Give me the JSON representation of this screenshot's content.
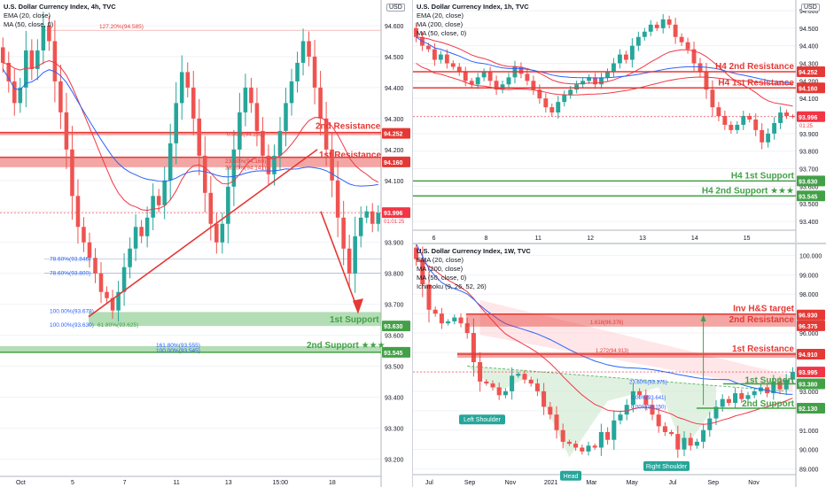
{
  "colors": {
    "up": "#26a69a",
    "down": "#ef5350",
    "ema": "#f23645",
    "ma200": "#f23645",
    "ma50": "#2962ff",
    "resistance": "#e53935",
    "support": "#43a047",
    "price": "#f23645"
  },
  "panel_4h": {
    "title": "U.S. Dollar Currency Index, 4h, TVC",
    "legend": [
      "EMA (20, close)",
      "MA (50, close, 0)"
    ],
    "currency": "USD",
    "price_tag": "93.996",
    "countdown": "01:01:25",
    "labels": {
      "resistance2": "2nd Resistance",
      "resistance1": "1st Resistance",
      "support1": "1st Support",
      "support2": "2nd Support ★★★",
      "fib_top": "127.20%(94.585)",
      "fib_r2": "0.00%(94.252)",
      "fib_r1a": "23.60%(94.160)",
      "fib_r1b": "38.20%(94.141)",
      "fib_786a": "78.60%(93.846)",
      "fib_786b": "78.60%(93.800)",
      "fib_100a": "100.00%(93.678)",
      "fib_100b": "100.00%(93.630)",
      "fib_618": "61.80%(93.625)",
      "fib_1618": "161.80%(93.555)",
      "fib_100c": "100.00%(93.545)"
    },
    "level_tags": {
      "r2": "94.252",
      "r1": "94.160",
      "s1": "93.630",
      "s2": "93.545"
    }
  },
  "panel_1h": {
    "title": "U.S. Dollar Currency Index, 1h, TVC",
    "legend": [
      "EMA (20, close)",
      "MA (200, close)",
      "MA (50, close, 0)"
    ],
    "currency": "USD",
    "price_tag": "93.996",
    "countdown": "01:25",
    "labels": {
      "r2": "H4 2nd Resistance",
      "r1": "H4 1st Resistance",
      "s1": "H4 1st Support",
      "s2": "H4 2nd Support ★★★"
    },
    "level_tags": {
      "r2": "94.252",
      "r1": "94.160",
      "s1": "93.630",
      "s2": "93.545"
    }
  },
  "panel_1w": {
    "title": "U.S. Dollar Currency Index, 1W, TVC",
    "legend": [
      "EMA (20, close)",
      "MA (200, close)",
      "MA (50, close, 0)",
      "Ichimoku (9, 26, 52, 26)"
    ],
    "price_tag": "93.995",
    "countdown": "21:01:24",
    "labels": {
      "target": "Inv H&S target",
      "r2": "2nd Resistance",
      "r1": "1st Resistance",
      "s1": "1st Support",
      "s2": "2nd Support",
      "left_shoulder": "Left Shoulder",
      "head": "Head",
      "right_shoulder": "Right Shoulder",
      "fib_1618": "1.618(96.376)",
      "fib_1272": "1.272(94.913)",
      "fib_236": "23.60%(93.375)",
      "fib_0a": "0.00%(93.641)",
      "fib_0b": "0.00%(93.150)"
    },
    "level_tags": {
      "target": "96.930",
      "r2": "96.375",
      "r1": "94.910",
      "s1": "93.380",
      "s2": "92.130"
    }
  },
  "chart_data": [
    {
      "type": "candlestick",
      "title": "U.S. Dollar Currency Index, 4h, TVC",
      "ylim": [
        93.15,
        94.66
      ],
      "yticks": [
        93.2,
        93.3,
        93.4,
        93.5,
        93.6,
        93.7,
        93.8,
        93.9,
        94.0,
        94.1,
        94.2,
        94.3,
        94.4,
        94.5,
        94.6
      ],
      "xticks": [
        "Oct",
        "5",
        "7",
        "11",
        "13",
        "15:00",
        "18"
      ],
      "levels": {
        "resistance2": 94.252,
        "resistance1": 94.16,
        "support1": 93.63,
        "support2": 93.545,
        "current": 93.996
      },
      "closes": [
        94.48,
        94.42,
        94.35,
        94.4,
        94.52,
        94.46,
        94.52,
        94.6,
        94.55,
        94.42,
        94.32,
        94.2,
        94.05,
        93.95,
        93.9,
        93.85,
        93.8,
        93.74,
        93.72,
        93.68,
        93.74,
        93.82,
        93.88,
        93.95,
        93.92,
        93.98,
        94.05,
        94.02,
        94.1,
        94.22,
        94.35,
        94.45,
        94.4,
        94.3,
        94.18,
        94.06,
        93.96,
        93.9,
        93.96,
        94.08,
        94.2,
        94.32,
        94.4,
        94.35,
        94.26,
        94.18,
        94.12,
        94.18,
        94.26,
        94.35,
        94.42,
        94.48,
        94.55,
        94.5,
        94.4,
        94.3,
        94.2,
        94.1,
        93.98,
        93.88,
        93.8,
        93.92,
        93.98,
        94.0,
        93.96,
        93.995
      ]
    },
    {
      "type": "candlestick",
      "title": "U.S. Dollar Currency Index, 1h, TVC",
      "ylim": [
        93.36,
        94.62
      ],
      "yticks": [
        93.4,
        93.5,
        93.6,
        93.7,
        93.8,
        93.9,
        94.0,
        94.1,
        94.2,
        94.3,
        94.4,
        94.5,
        94.6
      ],
      "xticks": [
        "6",
        "8",
        "11",
        "12",
        "13",
        "14",
        "15"
      ],
      "levels": {
        "r2": 94.252,
        "r1": 94.16,
        "s1": 93.63,
        "s2": 93.545,
        "current": 93.996
      },
      "closes": [
        94.45,
        94.4,
        94.38,
        94.32,
        94.35,
        94.3,
        94.28,
        94.25,
        94.2,
        94.18,
        94.22,
        94.25,
        94.2,
        94.15,
        94.18,
        94.22,
        94.28,
        94.24,
        94.2,
        94.15,
        94.1,
        94.05,
        94.02,
        94.08,
        94.12,
        94.15,
        94.18,
        94.2,
        94.22,
        94.18,
        94.22,
        94.25,
        94.3,
        94.35,
        94.32,
        94.4,
        94.45,
        94.48,
        94.52,
        94.5,
        94.55,
        94.52,
        94.45,
        94.42,
        94.38,
        94.3,
        94.25,
        94.15,
        94.05,
        94.0,
        93.95,
        93.92,
        93.95,
        94.0,
        93.98,
        93.92,
        93.85,
        93.9,
        93.96,
        94.02,
        94.0,
        93.996
      ]
    },
    {
      "type": "candlestick",
      "title": "U.S. Dollar Currency Index, 1W, TVC",
      "ylim": [
        88.8,
        100.2
      ],
      "yticks": [
        89,
        90,
        91,
        92,
        93,
        94,
        95,
        96,
        97,
        98,
        99,
        100
      ],
      "xticks": [
        "Jul",
        "Sep",
        "Nov",
        "2021",
        "Mar",
        "May",
        "Jul",
        "Sep",
        "Nov"
      ],
      "levels": {
        "target": 96.93,
        "r2": 96.375,
        "r1": 94.91,
        "s1": 93.38,
        "s2": 92.13,
        "current": 93.995
      },
      "annotations": [
        "Left Shoulder",
        "Head",
        "Right Shoulder"
      ],
      "closes": [
        99.8,
        98.5,
        97.2,
        97.0,
        96.5,
        96.6,
        96.8,
        96.5,
        96.0,
        94.5,
        93.5,
        93.4,
        93.2,
        92.8,
        93.0,
        93.8,
        93.9,
        93.6,
        93.4,
        93.0,
        92.2,
        91.8,
        91.0,
        90.4,
        90.3,
        90.1,
        89.9,
        90.2,
        90.1,
        90.9,
        90.5,
        91.5,
        91.8,
        92.3,
        93.0,
        92.8,
        92.3,
        91.8,
        91.2,
        90.9,
        90.8,
        90.0,
        90.6,
        90.2,
        90.4,
        91.0,
        91.6,
        92.2,
        92.6,
        92.4,
        92.9,
        92.6,
        92.8,
        93.0,
        93.2,
        92.9,
        93.5,
        93.1,
        93.6,
        93.995
      ]
    }
  ]
}
